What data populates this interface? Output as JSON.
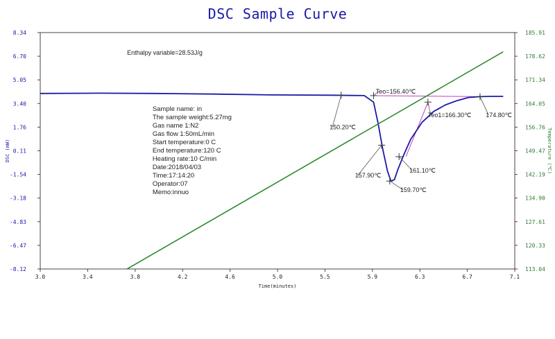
{
  "chart_data": {
    "type": "line",
    "title": "DSC Sample Curve",
    "xlabel": "Time(minutes)",
    "ylabel": "DSC (mW)",
    "y2label": "Temperature (℃)",
    "xlim": [
      3.0,
      7.1
    ],
    "ylim": [
      -8.12,
      8.34
    ],
    "y2lim": [
      113.04,
      185.91
    ],
    "x_ticks": [
      "3.0",
      "3.4",
      "3.8",
      "4.2",
      "4.6",
      "5.0",
      "5.5",
      "5.9",
      "6.3",
      "6.7",
      "7.1"
    ],
    "y_ticks": [
      "8.34",
      "6.70",
      "5.05",
      "3.40",
      "1.76",
      "0.11",
      "-1.54",
      "-3.18",
      "-4.83",
      "-6.47",
      "-8.12"
    ],
    "y2_ticks": [
      "185.91",
      "178.62",
      "171.34",
      "164.05",
      "156.76",
      "149.47",
      "142.19",
      "134.90",
      "127.61",
      "120.33",
      "113.04"
    ],
    "grid": false,
    "colors": {
      "dsc": "#1a1aa6",
      "temperature": "#2e8b2e",
      "baseline": "#c040c0",
      "axis_left": "#1a1aa6",
      "axis_right": "#2e7d32"
    },
    "series": [
      {
        "name": "DSC",
        "axis": "left",
        "x": [
          3.0,
          3.5,
          4.0,
          4.5,
          5.0,
          5.5,
          5.8,
          5.88,
          5.92,
          5.96,
          6.0,
          6.03,
          6.06,
          6.09,
          6.14,
          6.2,
          6.3,
          6.4,
          6.5,
          6.6,
          6.7,
          6.8,
          6.9,
          7.0
        ],
        "y": [
          4.1,
          4.12,
          4.1,
          4.06,
          4.0,
          3.98,
          3.95,
          3.5,
          2.0,
          0.2,
          -1.3,
          -2.0,
          -1.9,
          -1.2,
          -0.2,
          0.9,
          2.1,
          2.85,
          3.3,
          3.6,
          3.82,
          3.88,
          3.9,
          3.9
        ]
      },
      {
        "name": "Temperature",
        "axis": "right",
        "x": [
          3.75,
          7.0
        ],
        "y": [
          113.04,
          180.0
        ]
      }
    ],
    "annotations": [
      {
        "text": "Enthalpy variable=28.53J/g",
        "x": 3.75,
        "y": 6.8
      },
      {
        "text": "Teo=156.40℃",
        "x": 5.9,
        "y": 4.1,
        "marker_x": 5.88,
        "marker_y": 3.95
      },
      {
        "text": "150.20℃",
        "x": 5.5,
        "y": 1.6,
        "marker_x": 5.6,
        "marker_y": 3.98
      },
      {
        "text": "Teo1=166.30℃",
        "x": 6.35,
        "y": 2.45,
        "marker_x": 6.35,
        "marker_y": 3.5
      },
      {
        "text": "174.80℃",
        "x": 6.85,
        "y": 2.45,
        "marker_x": 6.8,
        "marker_y": 3.88
      },
      {
        "text": "157.90℃",
        "x": 5.72,
        "y": -1.75,
        "marker_x": 5.95,
        "marker_y": 0.5
      },
      {
        "text": "159.70℃",
        "x": 6.11,
        "y": -2.75,
        "marker_x": 6.02,
        "marker_y": -2.0
      },
      {
        "text": "161.10℃",
        "x": 6.19,
        "y": -1.4,
        "marker_x": 6.1,
        "marker_y": -0.3
      }
    ],
    "info_lines": [
      "Sample name: in",
      "The sample weight:5.27mg",
      "Gas name 1:N2",
      "Gas flow 1:50mL/min",
      "Start temperature:0 C",
      "End temperature:120 C",
      "Heating rate:10 C/min",
      "Date:2018/04/03",
      "Time:17:14:20",
      "Operator:07",
      "Memo:innuo"
    ]
  }
}
